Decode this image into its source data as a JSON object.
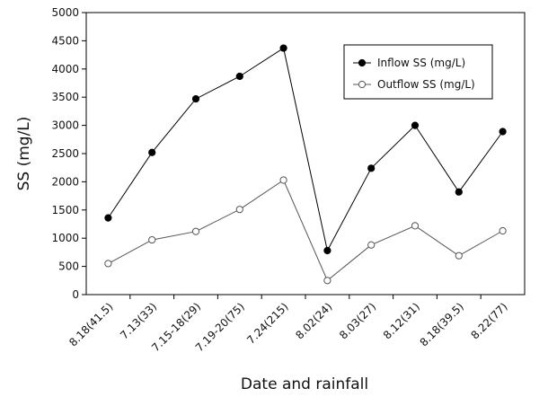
{
  "chart_data": {
    "type": "line",
    "categories": [
      "8.18(41.5)",
      "7.13(33)",
      "7.15-18(29)",
      "7.19-20(75)",
      "7.24(215)",
      "8.02(24)",
      "8.03(27)",
      "8.12(31)",
      "8.18(39.5)",
      "8.22(77)"
    ],
    "series": [
      {
        "name": "Inflow SS (mg/L)",
        "values": [
          1360,
          2520,
          3470,
          3870,
          4370,
          780,
          2240,
          3000,
          1820,
          2890
        ],
        "color": "#000000",
        "marker": "filled-circle"
      },
      {
        "name": "Outflow SS (mg/L)",
        "values": [
          550,
          970,
          1120,
          1510,
          2030,
          250,
          880,
          1220,
          690,
          1130
        ],
        "color": "#555555",
        "marker": "open-circle"
      }
    ],
    "xlabel": "Date and rainfall",
    "ylabel": "SS (mg/L)",
    "ylim": [
      0,
      5000
    ],
    "yticks": [
      "0",
      "500",
      "1000",
      "1500",
      "2000",
      "2500",
      "3000",
      "3500",
      "4000",
      "4500",
      "5000"
    ],
    "grid": false,
    "legend_position": "top-right"
  }
}
